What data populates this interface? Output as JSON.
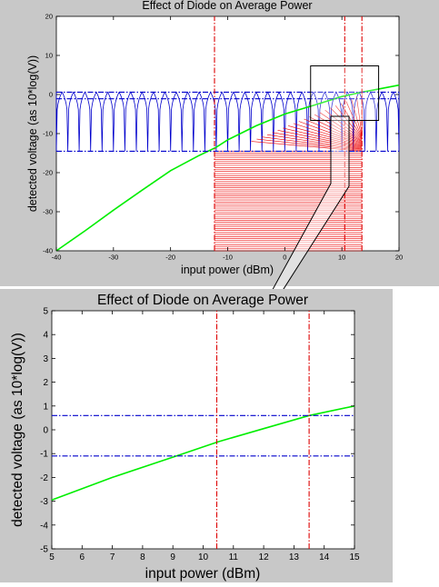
{
  "chart_data": [
    {
      "type": "line",
      "title": "Effect of Diode on Average Power",
      "xlabel": "input power (dBm)",
      "ylabel": "detected voltage (as 10*log(V))",
      "xlim": [
        -40,
        20
      ],
      "ylim": [
        -40,
        20
      ],
      "xticks": [
        -40,
        -30,
        -20,
        -10,
        0,
        10,
        20
      ],
      "yticks": [
        -40,
        -30,
        -20,
        -10,
        0,
        10,
        20
      ],
      "grid": false,
      "series": [
        {
          "color": "#00ee00",
          "style": "solid",
          "x": [
            -40,
            -35,
            -30,
            -25,
            -20,
            -15,
            -12,
            -10,
            -5,
            0,
            5,
            10,
            13.5,
            15,
            20
          ],
          "y": [
            -40,
            -34.9,
            -29.6,
            -24.5,
            -19.5,
            -15.6,
            -13.5,
            -11.6,
            -8,
            -5,
            -2.8,
            -0.5,
            0.6,
            1.0,
            2.4
          ]
        },
        {
          "color": "#0000cc",
          "style": "dashdot",
          "x": [
            -40,
            20
          ],
          "y": [
            0.6,
            0.6
          ]
        },
        {
          "color": "#0000cc",
          "style": "dashdot",
          "x": [
            -40,
            20
          ],
          "y": [
            -1.1,
            -1.1
          ]
        },
        {
          "color": "#0000cc",
          "style": "dashdot",
          "x": [
            -40,
            20
          ],
          "y": [
            -14.5,
            -14.5
          ]
        },
        {
          "color": "#dd0000",
          "style": "dashdot",
          "x": [
            -12.3,
            -12.3
          ],
          "y": [
            -40,
            20
          ]
        },
        {
          "color": "#dd0000",
          "style": "dashdot",
          "x": [
            10.5,
            10.5
          ],
          "y": [
            -40,
            20
          ]
        },
        {
          "color": "#dd0000",
          "style": "dashdot",
          "x": [
            13.5,
            13.5
          ],
          "y": [
            -40,
            20
          ]
        }
      ],
      "blue_oscillation": {
        "color": "#0000cc",
        "x_range": [
          -40,
          20
        ],
        "y_peak": 0.6,
        "y_trough": -14.5,
        "cycles": 30
      },
      "red_oscillation": {
        "color": "#ee0000",
        "x_range": [
          -12.3,
          13.5
        ],
        "y_range": [
          -40,
          -14.5
        ],
        "lines": 50
      },
      "zoom_box": {
        "x_range": [
          5,
          15
        ],
        "y_range": [
          -5,
          5
        ]
      }
    },
    {
      "type": "line",
      "title": "Effect of Diode on Average Power",
      "xlabel": "input power (dBm)",
      "ylabel": "detected voltage (as 10*log(V))",
      "xlim": [
        5,
        15
      ],
      "ylim": [
        -5,
        5
      ],
      "xticks": [
        5,
        6,
        7,
        8,
        9,
        10,
        11,
        12,
        13,
        14,
        15
      ],
      "yticks": [
        -5,
        -4,
        -3,
        -2,
        -1,
        0,
        1,
        2,
        3,
        4,
        5
      ],
      "grid": false,
      "series": [
        {
          "color": "#00ee00",
          "style": "solid",
          "x": [
            5,
            7,
            9,
            10.5,
            12,
            13.5,
            15
          ],
          "y": [
            -2.95,
            -2.0,
            -1.15,
            -0.5,
            0.05,
            0.6,
            1.0
          ]
        },
        {
          "color": "#0000cc",
          "style": "dashdot",
          "x": [
            5,
            15
          ],
          "y": [
            0.6,
            0.6
          ]
        },
        {
          "color": "#0000cc",
          "style": "dashdot",
          "x": [
            5,
            15
          ],
          "y": [
            -1.1,
            -1.1
          ]
        },
        {
          "color": "#dd0000",
          "style": "dashdot",
          "x": [
            10.45,
            10.45
          ],
          "y": [
            -5,
            5
          ]
        },
        {
          "color": "#dd0000",
          "style": "dashdot",
          "x": [
            13.5,
            13.5
          ],
          "y": [
            -5,
            5
          ]
        }
      ]
    }
  ]
}
